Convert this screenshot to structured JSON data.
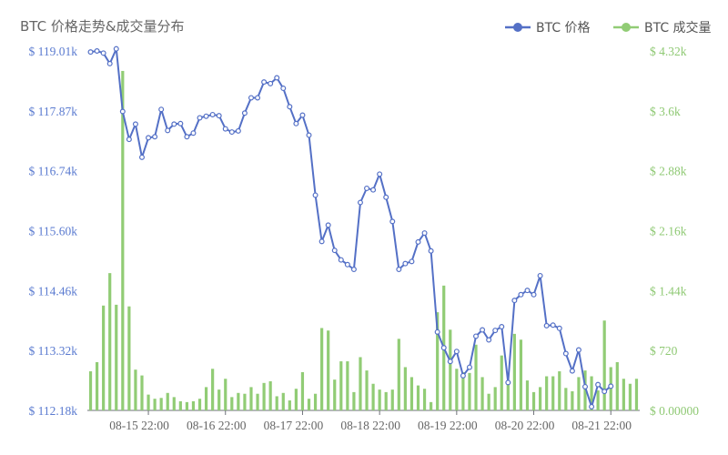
{
  "title": "BTC 价格走势&成交量分布",
  "colors": {
    "price": "#5470c6",
    "volume": "#91cc75",
    "axis_text_left": "#5b7bd0",
    "axis_text_right": "#8fc974"
  },
  "chart_data": {
    "type": "line+bar",
    "title": "BTC 价格走势&成交量分布",
    "legend": [
      "BTC 价格",
      "BTC 成交量"
    ],
    "legend_position": "top-right",
    "y_left_ticks": [
      "$ 112.18k",
      "$ 113.32k",
      "$ 114.46k",
      "$ 115.60k",
      "$ 116.74k",
      "$ 117.87k",
      "$ 119.01k"
    ],
    "y_right_ticks": [
      "$ 0.00000",
      "$ 720",
      "$ 1.44k",
      "$ 2.16k",
      "$ 2.88k",
      "$ 3.6k",
      "$ 4.32k"
    ],
    "x_tick_labels": [
      "08-15 22:00",
      "08-16 22:00",
      "08-17 22:00",
      "08-18 22:00",
      "08-19 22:00",
      "08-20 22:00",
      "08-21 22:00"
    ],
    "y_left_range": [
      112180,
      119010
    ],
    "y_right_range": [
      0,
      4320
    ],
    "grid": true,
    "series": [
      {
        "name": "BTC 价格",
        "type": "line",
        "values": [
          118990,
          119010,
          118970,
          118770,
          119050,
          117860,
          117330,
          117620,
          116990,
          117360,
          117380,
          117900,
          117500,
          117620,
          117630,
          117380,
          117450,
          117740,
          117770,
          117800,
          117780,
          117530,
          117470,
          117490,
          117830,
          118120,
          118120,
          118420,
          118390,
          118500,
          118300,
          117950,
          117630,
          117790,
          117410,
          116270,
          115390,
          115700,
          115220,
          115040,
          114950,
          114860,
          116130,
          116400,
          116370,
          116670,
          116230,
          115770,
          114860,
          114970,
          115010,
          115380,
          115550,
          115210,
          113670,
          113370,
          113110,
          113300,
          112840,
          113000,
          113590,
          113710,
          113520,
          113700,
          113770,
          112710,
          114270,
          114380,
          114460,
          114380,
          114740,
          113790,
          113800,
          113740,
          113260,
          112930,
          113330,
          112630,
          112250,
          112670,
          112540,
          112640
        ],
        "x_start_index": 0
      },
      {
        "name": "BTC 成交量",
        "type": "bar",
        "values": [
          470,
          580,
          1260,
          1650,
          1270,
          4080,
          1250,
          490,
          420,
          190,
          140,
          150,
          210,
          160,
          110,
          100,
          110,
          140,
          280,
          500,
          250,
          380,
          160,
          210,
          200,
          280,
          200,
          330,
          350,
          170,
          210,
          120,
          260,
          460,
          140,
          200,
          990,
          960,
          370,
          590,
          590,
          220,
          640,
          480,
          320,
          250,
          220,
          250,
          860,
          520,
          400,
          300,
          260,
          100,
          1180,
          1500,
          970,
          500,
          460,
          450,
          790,
          400,
          200,
          280,
          660,
          310,
          920,
          850,
          360,
          220,
          280,
          410,
          410,
          470,
          270,
          230,
          400,
          480,
          410,
          240,
          1080,
          520,
          580,
          380,
          320,
          380
        ]
      }
    ]
  }
}
